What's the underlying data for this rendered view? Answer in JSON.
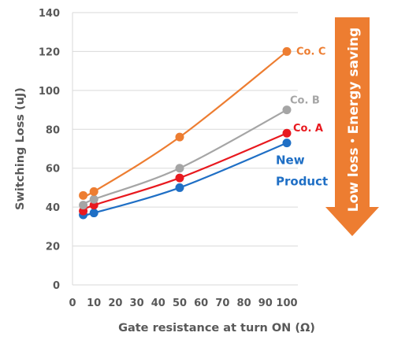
{
  "chart_data": {
    "type": "line",
    "xlabel": "Gate resistance at turn ON (Ω)",
    "ylabel": "Switching Loss  (uJ)",
    "x_ticks": [
      "0",
      "10",
      "20",
      "30",
      "40",
      "50",
      "60",
      "70",
      "80",
      "90",
      "100"
    ],
    "y_ticks": [
      "0",
      "20",
      "40",
      "60",
      "80",
      "100",
      "120",
      "140"
    ],
    "ylim": [
      0,
      140
    ],
    "x": [
      5,
      10,
      50,
      100
    ],
    "series": [
      {
        "name": "New Product",
        "label_lines": [
          "New",
          "Product"
        ],
        "color": "#1f6fc5",
        "values": [
          36,
          37,
          50,
          73
        ]
      },
      {
        "name": "Co. A",
        "color": "#e8191f",
        "values": [
          38,
          41,
          55,
          78
        ]
      },
      {
        "name": "Co. B",
        "color": "#a5a5a5",
        "values": [
          41,
          44,
          60,
          90
        ]
      },
      {
        "name": "Co. C",
        "color": "#ed7d31",
        "values": [
          46,
          48,
          76,
          120
        ]
      }
    ],
    "grid": "horizontal",
    "annotation": {
      "text": "Low loss・Energy saving",
      "color": "#ed7d31"
    }
  }
}
